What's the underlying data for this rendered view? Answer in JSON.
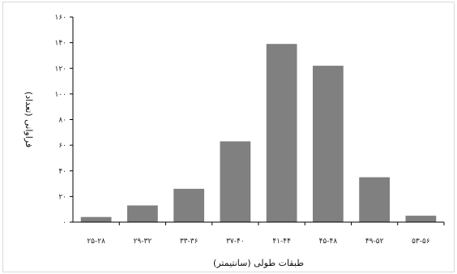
{
  "chart_data": {
    "type": "bar",
    "categories": [
      "۲۵-۲۸",
      "۲۹-۳۲",
      "۳۳-۳۶",
      "۳۷-۴۰",
      "۴۱-۴۴",
      "۴۵-۴۸",
      "۴۹-۵۲",
      "۵۳-۵۶"
    ],
    "values": [
      4,
      13,
      26,
      63,
      139,
      122,
      35,
      5
    ],
    "ylim": [
      0,
      160
    ],
    "yticks": [
      0,
      20,
      40,
      60,
      80,
      100,
      120,
      140,
      160
    ],
    "ytick_labels": [
      "۰",
      "۲۰",
      "۴۰",
      "۶۰",
      "۸۰",
      "۱۰۰",
      "۱۲۰",
      "۱۴۰",
      "۱۶۰"
    ],
    "xlabel": "طبقات طولی (سانتیمتر)",
    "ylabel": "فراوانی (تعداد)",
    "title": "",
    "grid": false,
    "legend": "none",
    "colors": {
      "bar": "#808080",
      "axis": "#000000"
    }
  }
}
